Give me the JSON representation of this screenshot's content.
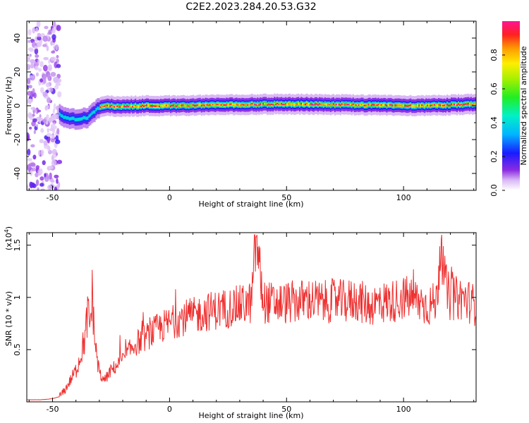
{
  "title": "C2E2.2023.284.20.53.G32",
  "chart_data": [
    {
      "type": "heatmap",
      "xlabel": "Height of straight line (km)",
      "ylabel": "Frequency (Hz)",
      "xlim": [
        -61,
        131
      ],
      "ylim": [
        -50,
        50
      ],
      "xticks": [
        -50,
        0,
        50,
        100
      ],
      "yticks": [
        -40,
        -20,
        0,
        20,
        40
      ],
      "colorbar": {
        "label": "Normalized spectral amplitude",
        "range": [
          0.0,
          1.0
        ],
        "ticks": [
          0.0,
          0.2,
          0.4,
          0.6,
          0.8
        ],
        "colormap": "white-purple-blue-cyan-green-yellow-orange-red-magenta"
      },
      "features": {
        "noise_region_km": [
          -61,
          -47
        ],
        "ridge_frequency_hz": [
          {
            "x": -47,
            "y": -5
          },
          {
            "x": -45,
            "y": -7
          },
          {
            "x": -40,
            "y": -8
          },
          {
            "x": -35,
            "y": -7
          },
          {
            "x": -31,
            "y": -2
          },
          {
            "x": -28,
            "y": 0
          },
          {
            "x": -20,
            "y": -0.5
          },
          {
            "x": -10,
            "y": 0
          },
          {
            "x": 0,
            "y": 0
          },
          {
            "x": 20,
            "y": 0.5
          },
          {
            "x": 50,
            "y": 1
          },
          {
            "x": 80,
            "y": 0.5
          },
          {
            "x": 110,
            "y": 0
          },
          {
            "x": 131,
            "y": 1
          }
        ]
      },
      "grid": false
    },
    {
      "type": "line",
      "xlabel": "Height of straight line (km)",
      "ylabel": "SNR (10 * v/v)",
      "y_scale_label": "(x10",
      "y_scale_exponent": "4",
      "y_scale_close": ")",
      "xlim": [
        -61,
        131
      ],
      "ylim": [
        0.0,
        1.62
      ],
      "xticks": [
        -50,
        0,
        50,
        100
      ],
      "yticks": [
        0.5,
        1.0,
        1.5
      ],
      "color": "#ee3030",
      "grid": false,
      "series": [
        {
          "x": [
            -61,
            -55,
            -50,
            -47,
            -45,
            -43,
            -40,
            -38,
            -36,
            -35,
            -34,
            -33,
            -32,
            -31,
            -30,
            -28,
            -25,
            -20,
            -15,
            -10,
            -5,
            0,
            5,
            10,
            15,
            20,
            25,
            30,
            35,
            37,
            40,
            45,
            50,
            55,
            60,
            65,
            70,
            75,
            80,
            85,
            90,
            95,
            100,
            105,
            110,
            114,
            116,
            118,
            120,
            125,
            131
          ],
          "y": [
            0.02,
            0.02,
            0.03,
            0.05,
            0.1,
            0.18,
            0.3,
            0.45,
            0.62,
            0.85,
            0.72,
            1.04,
            0.6,
            0.42,
            0.28,
            0.2,
            0.3,
            0.4,
            0.55,
            0.62,
            0.7,
            0.75,
            0.8,
            0.82,
            0.86,
            0.88,
            0.9,
            0.92,
            0.95,
            1.58,
            0.96,
            0.94,
            0.95,
            0.96,
            0.98,
            0.95,
            0.97,
            0.96,
            0.98,
            0.92,
            0.95,
            0.96,
            1.0,
            0.98,
            0.92,
            0.95,
            1.56,
            1.1,
            0.98,
            1.0,
            0.92
          ]
        }
      ]
    }
  ]
}
